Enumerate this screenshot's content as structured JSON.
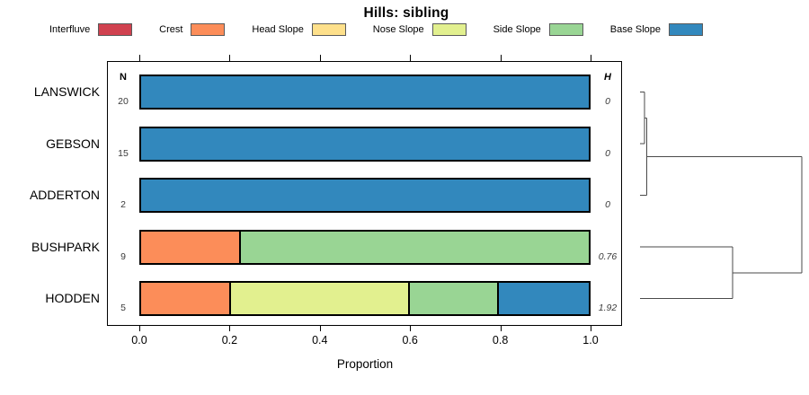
{
  "title": "Hills: sibling",
  "legend": [
    {
      "label": "Interfluve",
      "color": "#D0414F"
    },
    {
      "label": "Crest",
      "color": "#FC8D59"
    },
    {
      "label": "Head Slope",
      "color": "#FEE08B"
    },
    {
      "label": "Nose Slope",
      "color": "#E2F08F"
    },
    {
      "label": "Side Slope",
      "color": "#99D594"
    },
    {
      "label": "Base Slope",
      "color": "#3288BD"
    }
  ],
  "chart_data": {
    "type": "bar",
    "stacked": true,
    "orientation": "horizontal",
    "title": "Hills: sibling",
    "xlabel": "Proportion",
    "xlim": [
      0,
      1
    ],
    "xticks": [
      "0.0",
      "0.2",
      "0.4",
      "0.6",
      "0.8",
      "1.0"
    ],
    "n_header": "N",
    "h_header": "H",
    "categories": [
      "LANSWICK",
      "GEBSON",
      "ADDERTON",
      "BUSHPARK",
      "HODDEN"
    ],
    "rows": [
      {
        "label": "LANSWICK",
        "n": "20",
        "h": "0",
        "segments": [
          {
            "class": "Base Slope",
            "value": 1.0
          }
        ]
      },
      {
        "label": "GEBSON",
        "n": "15",
        "h": "0",
        "segments": [
          {
            "class": "Base Slope",
            "value": 1.0
          }
        ]
      },
      {
        "label": "ADDERTON",
        "n": "2",
        "h": "0",
        "segments": [
          {
            "class": "Base Slope",
            "value": 1.0
          }
        ]
      },
      {
        "label": "BUSHPARK",
        "n": "9",
        "h": "0.76",
        "segments": [
          {
            "class": "Crest",
            "value": 0.222
          },
          {
            "class": "Side Slope",
            "value": 0.778
          }
        ]
      },
      {
        "label": "HODDEN",
        "n": "5",
        "h": "1.92",
        "segments": [
          {
            "class": "Crest",
            "value": 0.2
          },
          {
            "class": "Nose Slope",
            "value": 0.4
          },
          {
            "class": "Side Slope",
            "value": 0.2
          },
          {
            "class": "Base Slope",
            "value": 0.2
          }
        ]
      }
    ],
    "dendrogram": {
      "note": "x in 0..1 merge-height units, y in row index units",
      "segments": [
        [
          0,
          0,
          0.028,
          0
        ],
        [
          0,
          1,
          0.028,
          1
        ],
        [
          0.028,
          0,
          0.028,
          1
        ],
        [
          0.028,
          0.5,
          0.041,
          0.5
        ],
        [
          0,
          2,
          0.041,
          2
        ],
        [
          0.041,
          0.5,
          0.041,
          2
        ],
        [
          0.041,
          1.25,
          1,
          1.25
        ],
        [
          0,
          3,
          0.572,
          3
        ],
        [
          0,
          4,
          0.572,
          4
        ],
        [
          0.572,
          3,
          0.572,
          4
        ],
        [
          0.572,
          3.5,
          1,
          3.5
        ],
        [
          1,
          1.25,
          1,
          3.5
        ]
      ],
      "line_color": "#4a4a4a"
    }
  }
}
